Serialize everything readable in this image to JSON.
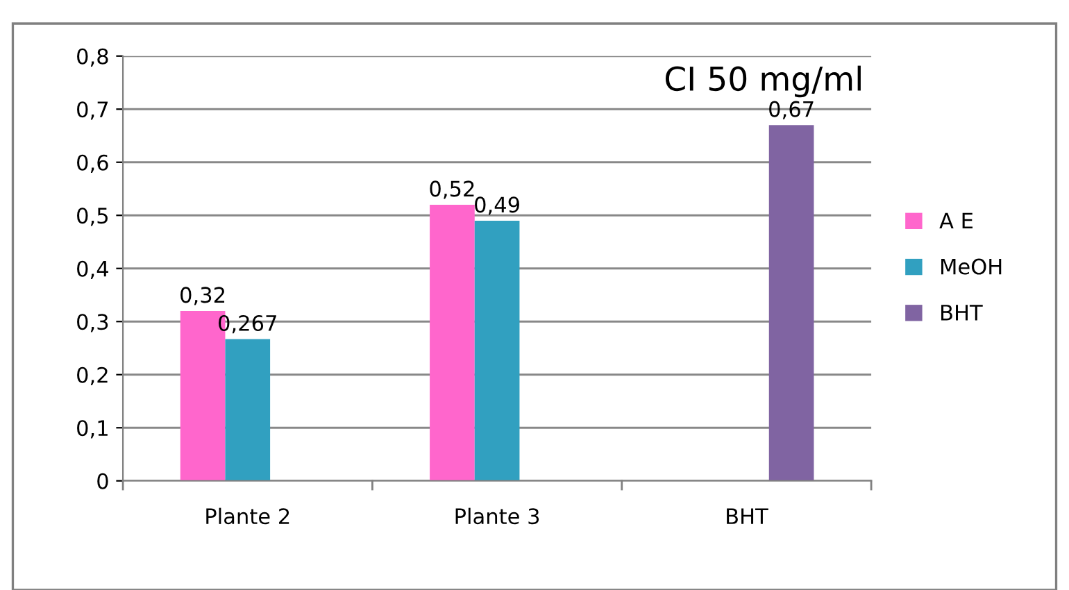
{
  "chart_data": {
    "type": "bar",
    "title": "CI 50 mg/ml",
    "categories": [
      "Plante 2",
      "Plante 3",
      "BHT"
    ],
    "series": [
      {
        "name": "A E",
        "color": "#ff66cc",
        "values": [
          0.32,
          0.52,
          null
        ],
        "value_labels": [
          "0,32",
          "0,52",
          null
        ]
      },
      {
        "name": "MeOH",
        "color": "#31a0c0",
        "values": [
          0.267,
          0.49,
          null
        ],
        "value_labels": [
          "0,267",
          "0,49",
          null
        ]
      },
      {
        "name": "BHT",
        "color": "#8064a2",
        "values": [
          null,
          null,
          0.67
        ],
        "value_labels": [
          null,
          null,
          "0,67"
        ]
      }
    ],
    "ylim": [
      0,
      0.8
    ],
    "yticks": [
      {
        "value": 0,
        "label": "0"
      },
      {
        "value": 0.1,
        "label": "0,1"
      },
      {
        "value": 0.2,
        "label": "0,2"
      },
      {
        "value": 0.3,
        "label": "0,3"
      },
      {
        "value": 0.4,
        "label": "0,4"
      },
      {
        "value": 0.5,
        "label": "0,5"
      },
      {
        "value": 0.6,
        "label": "0,6"
      },
      {
        "value": 0.7,
        "label": "0,7"
      },
      {
        "value": 0.8,
        "label": "0,8"
      }
    ],
    "grid": "y",
    "legend": "right"
  }
}
